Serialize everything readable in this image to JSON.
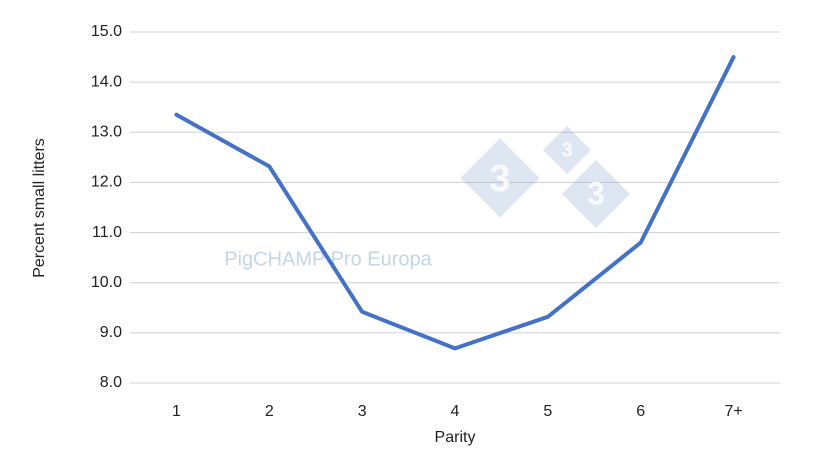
{
  "chart_data": {
    "type": "line",
    "x_label": "Parity",
    "y_label": "Percent small litters",
    "watermark": "PigCHAMP Pro Europa",
    "logo": [
      "3",
      "3",
      "3"
    ],
    "categories": [
      "1",
      "2",
      "3",
      "4",
      "5",
      "6",
      "7+"
    ],
    "series": [
      {
        "name": "Percent small litters",
        "color": "#4472c4",
        "values": [
          13.35,
          12.32,
          9.42,
          8.69,
          9.32,
          10.8,
          14.5
        ]
      }
    ],
    "ylim": [
      8,
      15
    ],
    "yticks": [
      {
        "value": 8,
        "label": "8.0"
      },
      {
        "value": 9,
        "label": "9.0"
      },
      {
        "value": 10,
        "label": "10.0"
      },
      {
        "value": 11,
        "label": "11.0"
      },
      {
        "value": 12,
        "label": "12.0"
      },
      {
        "value": 13,
        "label": "13.0"
      },
      {
        "value": 14,
        "label": "14.0"
      },
      {
        "value": 15,
        "label": "15.0"
      }
    ],
    "grid": true
  }
}
